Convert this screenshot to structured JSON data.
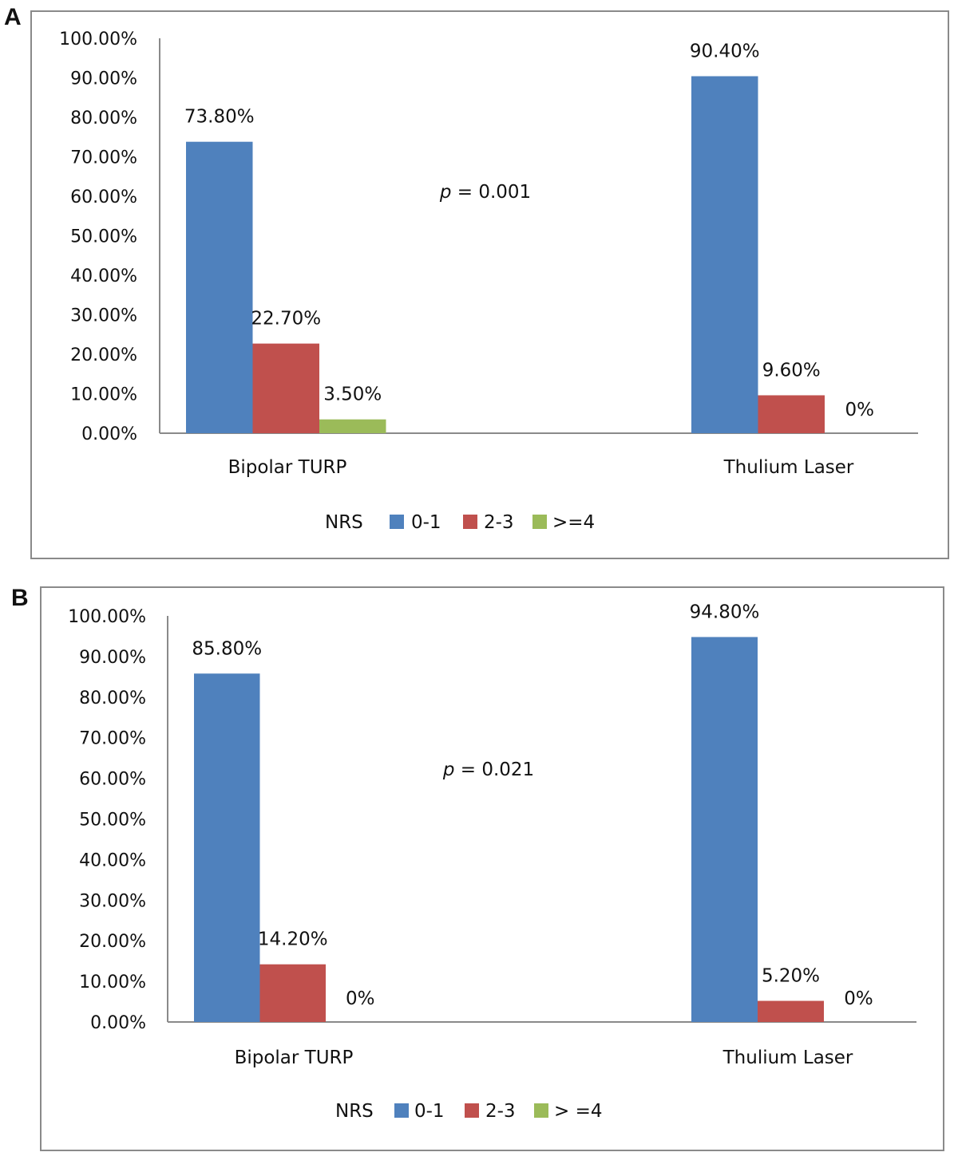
{
  "colors": {
    "series_0_1": "#4F81BD",
    "series_2_3": "#C0504D",
    "series_ge4": "#9BBB59",
    "axis": "#8a8a8a"
  },
  "chart_data": [
    {
      "panel": "A",
      "type": "bar",
      "categories": [
        "Bipolar TURP",
        "Thulium Laser"
      ],
      "series": [
        {
          "name": "0-1",
          "values": [
            73.8,
            90.4
          ],
          "labels": [
            "73.80%",
            "90.40%"
          ]
        },
        {
          "name": "2-3",
          "values": [
            22.7,
            9.6
          ],
          "labels": [
            "22.70%",
            "9.60%"
          ]
        },
        {
          "name": ">=4",
          "values": [
            3.5,
            0
          ],
          "labels": [
            "3.50%",
            "0%"
          ]
        }
      ],
      "legend_title": "NRS",
      "legend_position": "bottom",
      "annotation": {
        "italic": "p",
        "rest": " = 0.001"
      },
      "yticks": [
        "0.00%",
        "10.00%",
        "20.00%",
        "30.00%",
        "40.00%",
        "50.00%",
        "60.00%",
        "70.00%",
        "80.00%",
        "90.00%",
        "100.00%"
      ],
      "ylim": [
        0,
        100
      ],
      "grid": false
    },
    {
      "panel": "B",
      "type": "bar",
      "categories": [
        "Bipolar TURP",
        "Thulium Laser"
      ],
      "series": [
        {
          "name": "0-1",
          "values": [
            85.8,
            94.8
          ],
          "labels": [
            "85.80%",
            "94.80%"
          ]
        },
        {
          "name": "2-3",
          "values": [
            14.2,
            5.2
          ],
          "labels": [
            "14.20%",
            "5.20%"
          ]
        },
        {
          "name": "> =4",
          "values": [
            0,
            0
          ],
          "labels": [
            "0%",
            "0%"
          ]
        }
      ],
      "legend_title": "NRS",
      "legend_position": "bottom",
      "annotation": {
        "italic": "p",
        "rest": " = 0.021"
      },
      "yticks": [
        "0.00%",
        "10.00%",
        "20.00%",
        "30.00%",
        "40.00%",
        "50.00%",
        "60.00%",
        "70.00%",
        "80.00%",
        "90.00%",
        "100.00%"
      ],
      "ylim": [
        0,
        100
      ],
      "grid": false
    }
  ]
}
